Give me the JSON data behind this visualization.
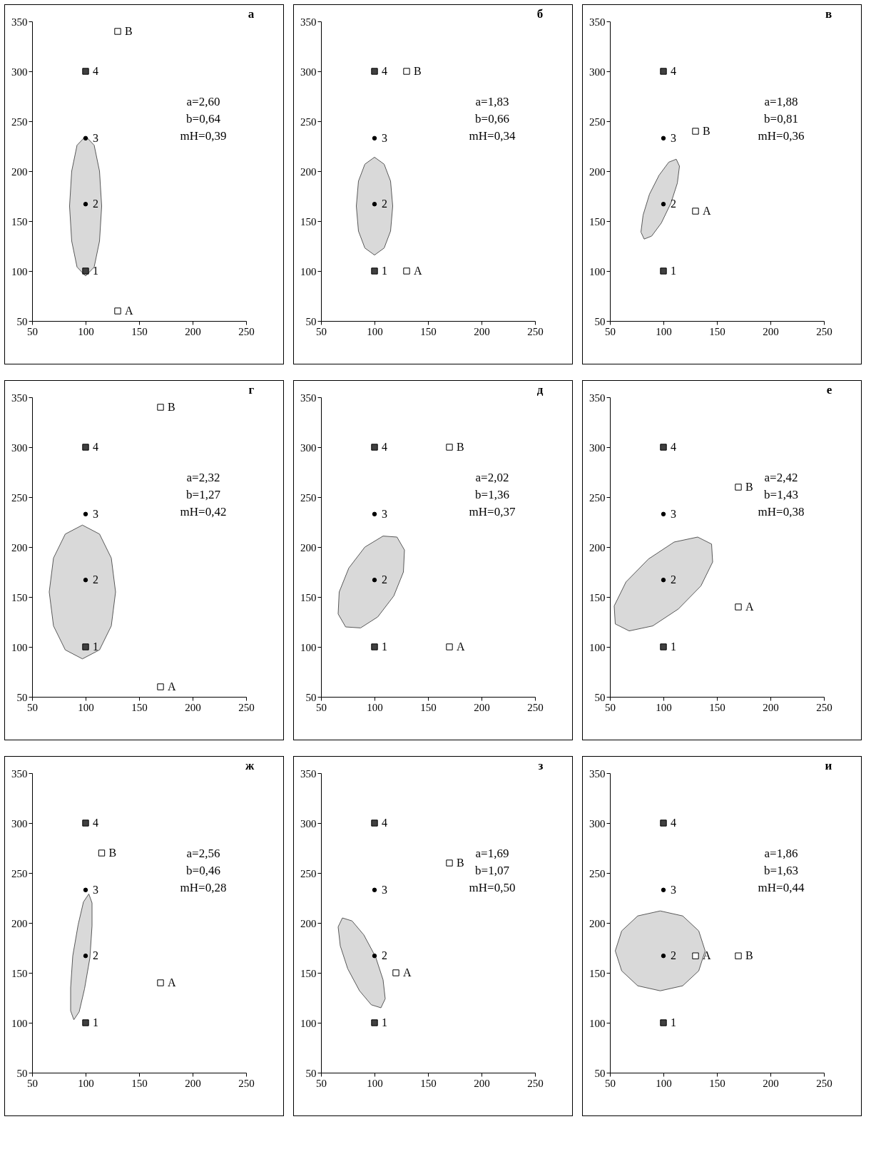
{
  "chart_data": [
    {
      "type": "scatter",
      "title": "а",
      "xlim": [
        50,
        250
      ],
      "ylim": [
        50,
        350
      ],
      "xticks": [
        50,
        100,
        150,
        200,
        250
      ],
      "yticks": [
        50,
        100,
        150,
        200,
        250,
        300,
        350
      ],
      "annotations": [
        "a=2,60",
        "b=0,64",
        "mH=0,39",
        {
          "text": "1",
          "x": 100,
          "y": 100
        },
        {
          "text": "4",
          "x": 100,
          "y": 300
        },
        {
          "text": "2",
          "x": 100,
          "y": 167
        },
        {
          "text": "3",
          "x": 100,
          "y": 233
        },
        {
          "text": "А",
          "x": 130,
          "y": 60
        },
        {
          "text": "В",
          "x": 130,
          "y": 340
        }
      ],
      "series": [
        {
          "type": "area",
          "color": "#d9d9d9",
          "x": [
            115,
            113,
            108,
            100,
            92,
            87,
            85,
            87,
            92,
            100,
            108,
            113
          ],
          "values": [
            165,
            200,
            226,
            235,
            226,
            200,
            165,
            130,
            104,
            95,
            104,
            130
          ]
        },
        {
          "type": "scatter",
          "marker": "square",
          "color": "#404040",
          "x": [
            100,
            100
          ],
          "values": [
            100,
            300
          ]
        },
        {
          "type": "scatter",
          "marker": "circle",
          "color": "#000000",
          "x": [
            100,
            100
          ],
          "values": [
            167,
            233
          ]
        },
        {
          "type": "scatter",
          "marker": "square",
          "color": "#ffffff",
          "x": [
            130,
            130
          ],
          "values": [
            60,
            340
          ]
        }
      ]
    },
    {
      "type": "scatter",
      "title": "б",
      "xlim": [
        50,
        250
      ],
      "ylim": [
        50,
        350
      ],
      "xticks": [
        50,
        100,
        150,
        200,
        250
      ],
      "yticks": [
        50,
        100,
        150,
        200,
        250,
        300,
        350
      ],
      "annotations": [
        "a=1,83",
        "b=0,66",
        "mH=0,34",
        {
          "text": "1",
          "x": 100,
          "y": 100
        },
        {
          "text": "4",
          "x": 100,
          "y": 300
        },
        {
          "text": "2",
          "x": 100,
          "y": 167
        },
        {
          "text": "3",
          "x": 100,
          "y": 233
        },
        {
          "text": "А",
          "x": 130,
          "y": 100
        },
        {
          "text": "В",
          "x": 130,
          "y": 300
        }
      ],
      "series": [
        {
          "type": "area",
          "color": "#d9d9d9",
          "x": [
            117,
            115,
            109,
            100,
            91,
            85,
            83,
            85,
            91,
            100,
            109,
            115
          ],
          "values": [
            165,
            190,
            207,
            214,
            207,
            190,
            165,
            140,
            123,
            116,
            123,
            140
          ]
        },
        {
          "type": "scatter",
          "marker": "square",
          "color": "#404040",
          "x": [
            100,
            100
          ],
          "values": [
            100,
            300
          ]
        },
        {
          "type": "scatter",
          "marker": "circle",
          "color": "#000000",
          "x": [
            100,
            100
          ],
          "values": [
            167,
            233
          ]
        },
        {
          "type": "scatter",
          "marker": "square",
          "color": "#ffffff",
          "x": [
            130,
            130
          ],
          "values": [
            100,
            300
          ]
        }
      ]
    },
    {
      "type": "scatter",
      "title": "в",
      "xlim": [
        50,
        250
      ],
      "ylim": [
        50,
        350
      ],
      "xticks": [
        50,
        100,
        150,
        200,
        250
      ],
      "yticks": [
        50,
        100,
        150,
        200,
        250,
        300,
        350
      ],
      "annotations": [
        "a=1,88",
        "b=0,81",
        "mH=0,36",
        {
          "text": "1",
          "x": 100,
          "y": 100
        },
        {
          "text": "4",
          "x": 100,
          "y": 300
        },
        {
          "text": "2",
          "x": 100,
          "y": 167
        },
        {
          "text": "3",
          "x": 100,
          "y": 233
        },
        {
          "text": "А",
          "x": 130,
          "y": 160
        },
        {
          "text": "В",
          "x": 130,
          "y": 240
        }
      ],
      "series": [
        {
          "type": "area",
          "color": "#d9d9d9",
          "x": [
            112,
            115,
            113,
            107,
            98,
            89,
            82,
            79,
            81,
            87,
            96,
            105
          ],
          "values": [
            212,
            205,
            188,
            168,
            148,
            135,
            132,
            139,
            156,
            177,
            196,
            209
          ]
        },
        {
          "type": "scatter",
          "marker": "square",
          "color": "#404040",
          "x": [
            100,
            100
          ],
          "values": [
            100,
            300
          ]
        },
        {
          "type": "scatter",
          "marker": "circle",
          "color": "#000000",
          "x": [
            100,
            100
          ],
          "values": [
            167,
            233
          ]
        },
        {
          "type": "scatter",
          "marker": "square",
          "color": "#ffffff",
          "x": [
            130,
            130
          ],
          "values": [
            160,
            240
          ]
        }
      ]
    },
    {
      "type": "scatter",
      "title": "г",
      "xlim": [
        50,
        250
      ],
      "ylim": [
        50,
        350
      ],
      "xticks": [
        50,
        100,
        150,
        200,
        250
      ],
      "yticks": [
        50,
        100,
        150,
        200,
        250,
        300,
        350
      ],
      "annotations": [
        "a=2,32",
        "b=1,27",
        "mH=0,42",
        {
          "text": "1",
          "x": 100,
          "y": 100
        },
        {
          "text": "4",
          "x": 100,
          "y": 300
        },
        {
          "text": "2",
          "x": 100,
          "y": 167
        },
        {
          "text": "3",
          "x": 100,
          "y": 233
        },
        {
          "text": "А",
          "x": 170,
          "y": 60
        },
        {
          "text": "В",
          "x": 170,
          "y": 340
        }
      ],
      "series": [
        {
          "type": "area",
          "color": "#d9d9d9",
          "x": [
            128,
            124,
            113,
            97,
            81,
            70,
            66,
            70,
            81,
            97,
            113,
            124
          ],
          "values": [
            155,
            189,
            213,
            222,
            213,
            189,
            155,
            121,
            97,
            88,
            97,
            121
          ]
        },
        {
          "type": "scatter",
          "marker": "square",
          "color": "#404040",
          "x": [
            100,
            100
          ],
          "values": [
            100,
            300
          ]
        },
        {
          "type": "scatter",
          "marker": "circle",
          "color": "#000000",
          "x": [
            100,
            100
          ],
          "values": [
            167,
            233
          ]
        },
        {
          "type": "scatter",
          "marker": "square",
          "color": "#ffffff",
          "x": [
            170,
            170
          ],
          "values": [
            60,
            340
          ]
        }
      ]
    },
    {
      "type": "scatter",
      "title": "д",
      "xlim": [
        50,
        250
      ],
      "ylim": [
        50,
        350
      ],
      "xticks": [
        50,
        100,
        150,
        200,
        250
      ],
      "yticks": [
        50,
        100,
        150,
        200,
        250,
        300,
        350
      ],
      "annotations": [
        "a=2,02",
        "b=1,36",
        "mH=0,37",
        {
          "text": "1",
          "x": 100,
          "y": 100
        },
        {
          "text": "4",
          "x": 100,
          "y": 300
        },
        {
          "text": "2",
          "x": 100,
          "y": 167
        },
        {
          "text": "3",
          "x": 100,
          "y": 233
        },
        {
          "text": "А",
          "x": 170,
          "y": 100
        },
        {
          "text": "В",
          "x": 170,
          "y": 300
        }
      ],
      "series": [
        {
          "type": "area",
          "color": "#d9d9d9",
          "x": [
            121,
            128,
            127,
            118,
            103,
            87,
            73,
            66,
            67,
            76,
            91,
            108
          ],
          "values": [
            210,
            197,
            175,
            151,
            130,
            119,
            120,
            133,
            155,
            179,
            200,
            211
          ]
        },
        {
          "type": "scatter",
          "marker": "square",
          "color": "#404040",
          "x": [
            100,
            100
          ],
          "values": [
            100,
            300
          ]
        },
        {
          "type": "scatter",
          "marker": "circle",
          "color": "#000000",
          "x": [
            100,
            100
          ],
          "values": [
            167,
            233
          ]
        },
        {
          "type": "scatter",
          "marker": "square",
          "color": "#ffffff",
          "x": [
            170,
            170
          ],
          "values": [
            100,
            300
          ]
        }
      ]
    },
    {
      "type": "scatter",
      "title": "е",
      "xlim": [
        50,
        250
      ],
      "ylim": [
        50,
        350
      ],
      "xticks": [
        50,
        100,
        150,
        200,
        250
      ],
      "yticks": [
        50,
        100,
        150,
        200,
        250,
        300,
        350
      ],
      "annotations": [
        "a=2,42",
        "b=1,43",
        "mH=0,38",
        {
          "text": "1",
          "x": 100,
          "y": 100
        },
        {
          "text": "4",
          "x": 100,
          "y": 300
        },
        {
          "text": "2",
          "x": 100,
          "y": 167
        },
        {
          "text": "3",
          "x": 100,
          "y": 233
        },
        {
          "text": "А",
          "x": 170,
          "y": 140
        },
        {
          "text": "В",
          "x": 170,
          "y": 260
        }
      ],
      "series": [
        {
          "type": "area",
          "color": "#d9d9d9",
          "x": [
            145,
            146,
            135,
            114,
            90,
            68,
            55,
            54,
            65,
            86,
            110,
            132
          ],
          "values": [
            203,
            185,
            161,
            138,
            121,
            116,
            123,
            141,
            165,
            188,
            205,
            210
          ]
        },
        {
          "type": "scatter",
          "marker": "square",
          "color": "#404040",
          "x": [
            100,
            100
          ],
          "values": [
            100,
            300
          ]
        },
        {
          "type": "scatter",
          "marker": "circle",
          "color": "#000000",
          "x": [
            100,
            100
          ],
          "values": [
            167,
            233
          ]
        },
        {
          "type": "scatter",
          "marker": "square",
          "color": "#ffffff",
          "x": [
            170,
            170
          ],
          "values": [
            140,
            260
          ]
        }
      ]
    },
    {
      "type": "scatter",
      "title": "ж",
      "xlim": [
        50,
        250
      ],
      "ylim": [
        50,
        350
      ],
      "xticks": [
        50,
        100,
        150,
        200,
        250
      ],
      "yticks": [
        50,
        100,
        150,
        200,
        250,
        300,
        350
      ],
      "annotations": [
        "a=2,56",
        "b=0,46",
        "mH=0,28",
        {
          "text": "1",
          "x": 100,
          "y": 100
        },
        {
          "text": "4",
          "x": 100,
          "y": 300
        },
        {
          "text": "2",
          "x": 100,
          "y": 167
        },
        {
          "text": "3",
          "x": 100,
          "y": 233
        },
        {
          "text": "А",
          "x": 170,
          "y": 140
        },
        {
          "text": "В",
          "x": 115,
          "y": 270
        }
      ],
      "series": [
        {
          "type": "area",
          "color": "#d9d9d9",
          "x": [
            103,
            106,
            106,
            104,
            99,
            94,
            89,
            86,
            86,
            88,
            93,
            98
          ],
          "values": [
            229,
            220,
            197,
            165,
            134,
            111,
            103,
            112,
            135,
            167,
            198,
            221
          ]
        },
        {
          "type": "scatter",
          "marker": "square",
          "color": "#404040",
          "x": [
            100,
            100
          ],
          "values": [
            100,
            300
          ]
        },
        {
          "type": "scatter",
          "marker": "circle",
          "color": "#000000",
          "x": [
            100,
            100
          ],
          "values": [
            167,
            233
          ]
        },
        {
          "type": "scatter",
          "marker": "square",
          "color": "#ffffff",
          "x": [
            170,
            115
          ],
          "values": [
            140,
            270
          ]
        }
      ]
    },
    {
      "type": "scatter",
      "title": "з",
      "xlim": [
        50,
        250
      ],
      "ylim": [
        50,
        350
      ],
      "xticks": [
        50,
        100,
        150,
        200,
        250
      ],
      "yticks": [
        50,
        100,
        150,
        200,
        250,
        300,
        350
      ],
      "annotations": [
        "a=1,69",
        "b=1,07",
        "mH=0,50",
        {
          "text": "1",
          "x": 100,
          "y": 100
        },
        {
          "text": "4",
          "x": 100,
          "y": 300
        },
        {
          "text": "2",
          "x": 100,
          "y": 167
        },
        {
          "text": "3",
          "x": 100,
          "y": 233
        },
        {
          "text": "А",
          "x": 120,
          "y": 150
        },
        {
          "text": "В",
          "x": 170,
          "y": 260
        }
      ],
      "series": [
        {
          "type": "area",
          "color": "#d9d9d9",
          "x": [
            106,
            110,
            108,
            101,
            90,
            79,
            70,
            66,
            68,
            75,
            86,
            97
          ],
          "values": [
            115,
            124,
            143,
            166,
            188,
            202,
            205,
            196,
            177,
            154,
            132,
            118
          ]
        },
        {
          "type": "scatter",
          "marker": "square",
          "color": "#404040",
          "x": [
            100,
            100
          ],
          "values": [
            100,
            300
          ]
        },
        {
          "type": "scatter",
          "marker": "circle",
          "color": "#000000",
          "x": [
            100,
            100
          ],
          "values": [
            167,
            233
          ]
        },
        {
          "type": "scatter",
          "marker": "square",
          "color": "#ffffff",
          "x": [
            120,
            170
          ],
          "values": [
            150,
            260
          ]
        }
      ]
    },
    {
      "type": "scatter",
      "title": "и",
      "xlim": [
        50,
        250
      ],
      "ylim": [
        50,
        350
      ],
      "xticks": [
        50,
        100,
        150,
        200,
        250
      ],
      "yticks": [
        50,
        100,
        150,
        200,
        250,
        300,
        350
      ],
      "annotations": [
        "a=1,86",
        "b=1,63",
        "mH=0,44",
        {
          "text": "1",
          "x": 100,
          "y": 100
        },
        {
          "text": "4",
          "x": 100,
          "y": 300
        },
        {
          "text": "2",
          "x": 100,
          "y": 167
        },
        {
          "text": "3",
          "x": 100,
          "y": 233
        },
        {
          "text": "А",
          "x": 130,
          "y": 167
        },
        {
          "text": "В",
          "x": 170,
          "y": 167
        }
      ],
      "series": [
        {
          "type": "area",
          "color": "#d9d9d9",
          "x": [
            139,
            133,
            118,
            97,
            76,
            61,
            55,
            61,
            76,
            97,
            118,
            133
          ],
          "values": [
            172,
            192,
            207,
            212,
            207,
            192,
            172,
            152,
            137,
            132,
            137,
            152
          ]
        },
        {
          "type": "scatter",
          "marker": "square",
          "color": "#404040",
          "x": [
            100,
            100
          ],
          "values": [
            100,
            300
          ]
        },
        {
          "type": "scatter",
          "marker": "circle",
          "color": "#000000",
          "x": [
            100,
            100
          ],
          "values": [
            167,
            233
          ]
        },
        {
          "type": "scatter",
          "marker": "square",
          "color": "#ffffff",
          "x": [
            130,
            170
          ],
          "values": [
            167,
            167
          ]
        }
      ]
    }
  ]
}
